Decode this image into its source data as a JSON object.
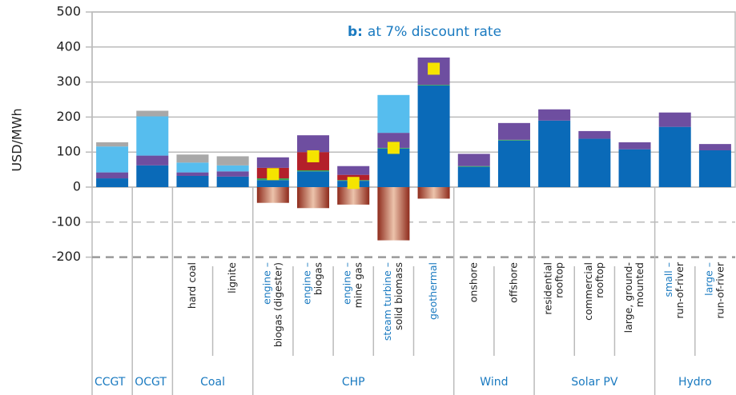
{
  "chart_data": {
    "type": "bar",
    "stacked": true,
    "annotation": {
      "bold": "b:",
      "text": "at 7% discount rate",
      "color": "#1a7ac0"
    },
    "ylabel": "USD/MWh",
    "ylim": [
      -200,
      500
    ],
    "yticks": [
      500,
      400,
      300,
      200,
      100,
      0,
      -100,
      -200
    ],
    "grid": true,
    "categories": [
      null,
      null,
      [
        "hard coal"
      ],
      [
        "lignite"
      ],
      [
        "engine –",
        "biogas (digester)"
      ],
      [
        "engine –",
        "biogas"
      ],
      [
        "engine –",
        "mine gas"
      ],
      [
        "steam turbine –",
        "solid biomass"
      ],
      [
        "geothermal"
      ],
      [
        "onshore"
      ],
      [
        "offshore"
      ],
      [
        "residential",
        "rooftop"
      ],
      [
        "commercial",
        "rooftop"
      ],
      [
        "large, ground-",
        "mounted"
      ],
      [
        "small –",
        "run-of-river"
      ],
      [
        "large –",
        "run-of-river"
      ]
    ],
    "category_label_colors": [
      null,
      null,
      [
        "#222"
      ],
      [
        "#222"
      ],
      [
        "#1a7ac0",
        "#222"
      ],
      [
        "#1a7ac0",
        "#222"
      ],
      [
        "#1a7ac0",
        "#222"
      ],
      [
        "#1a7ac0",
        "#222"
      ],
      [
        "#1a7ac0"
      ],
      [
        "#222"
      ],
      [
        "#222"
      ],
      [
        "#222",
        "#222"
      ],
      [
        "#222",
        "#222"
      ],
      [
        "#222",
        "#222"
      ],
      [
        "#1a7ac0",
        "#222"
      ],
      [
        "#1a7ac0",
        "#222"
      ]
    ],
    "groups": [
      {
        "name": "CCGT",
        "span": 1
      },
      {
        "name": "OCGT",
        "span": 1
      },
      {
        "name": "Coal",
        "span": 2
      },
      {
        "name": "CHP",
        "span": 5
      },
      {
        "name": "Wind",
        "span": 2
      },
      {
        "name": "Solar PV",
        "span": 3
      },
      {
        "name": "Hydro",
        "span": 2
      }
    ],
    "series": [
      {
        "color": "#0a6ab8",
        "values": [
          25,
          62,
          32,
          30,
          20,
          45,
          18,
          110,
          290,
          58,
          133,
          190,
          138,
          108,
          172,
          105
        ]
      },
      {
        "color": "#3aa655",
        "values": [
          null,
          null,
          null,
          null,
          5,
          3,
          2,
          2,
          2,
          2,
          2,
          null,
          null,
          null,
          null,
          null
        ]
      },
      {
        "color": "#b3202a",
        "values": [
          null,
          null,
          null,
          null,
          30,
          52,
          15,
          null,
          null,
          null,
          null,
          null,
          null,
          null,
          null,
          null
        ]
      },
      {
        "color": "#6e4ea0",
        "values": [
          17,
          28,
          10,
          15,
          30,
          48,
          25,
          43,
          78,
          35,
          48,
          32,
          22,
          20,
          41,
          18
        ]
      },
      {
        "color": "#56bdee",
        "values": [
          74,
          112,
          28,
          17,
          null,
          null,
          null,
          108,
          null,
          null,
          null,
          null,
          null,
          null,
          null,
          null
        ]
      },
      {
        "color": "#a8a8a8",
        "values": [
          12,
          16,
          23,
          26,
          null,
          null,
          null,
          null,
          null,
          null,
          null,
          null,
          null,
          null,
          null,
          null
        ]
      }
    ],
    "negative": {
      "colors": [
        "#8e2b1c",
        "#ecc3ab"
      ],
      "values": [
        null,
        null,
        null,
        null,
        -45,
        -60,
        -50,
        -152,
        -33,
        null,
        null,
        null,
        null,
        null,
        null,
        null
      ]
    },
    "markers": {
      "color": "#f5e400",
      "values": [
        null,
        null,
        null,
        null,
        37,
        88,
        12,
        112,
        338,
        null,
        null,
        null,
        null,
        null,
        null,
        null
      ]
    }
  }
}
